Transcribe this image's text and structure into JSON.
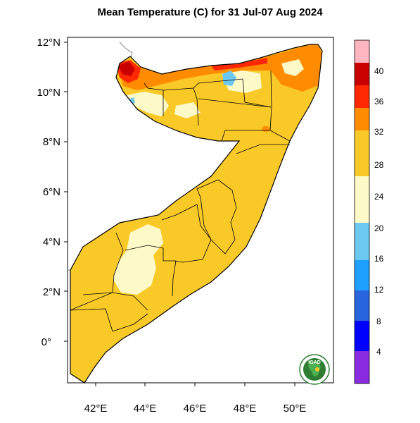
{
  "title": "Mean Temperature (C) for 31 Jul-07 Aug 2024",
  "map": {
    "type": "filled-contour map",
    "region": "Somalia",
    "y_ticks": [
      "12°N",
      "10°N",
      "8°N",
      "6°N",
      "4°N",
      "2°N",
      "0°"
    ],
    "x_ticks": [
      "42°E",
      "44°E",
      "46°E",
      "48°E",
      "50°E"
    ]
  },
  "colorbar": {
    "labels": [
      "40",
      "36",
      "32",
      "28",
      "24",
      "20",
      "16",
      "12",
      "8",
      "4"
    ],
    "colors": [
      "#ffb6c1",
      "#c80000",
      "#ff2800",
      "#ff8c00",
      "#f9c928",
      "#fdfac8",
      "#6cc8f0",
      "#1ea0ff",
      "#2864dc",
      "#0000ff",
      "#8a2be2"
    ]
  },
  "logo": {
    "text": "IGAD",
    "icon": "igad-logo-icon"
  }
}
